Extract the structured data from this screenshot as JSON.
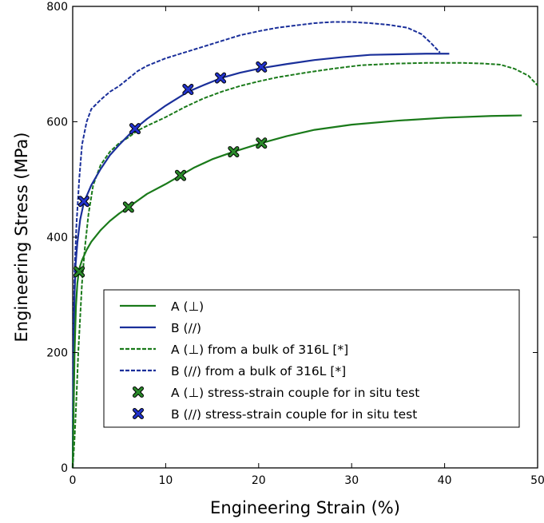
{
  "chart_data": {
    "type": "line",
    "xlabel": "Engineering Strain (%)",
    "ylabel": "Engineering Stress (MPa)",
    "xlim": [
      0,
      50
    ],
    "ylim": [
      0,
      800
    ],
    "xticks": [
      0,
      10,
      20,
      30,
      40,
      50
    ],
    "yticks": [
      0,
      200,
      400,
      600,
      800
    ],
    "grid": false,
    "legend_position": "lower-right",
    "series": [
      {
        "name": "A (⊥)",
        "style": "solid",
        "color": "#1a7a1a",
        "points": [
          [
            0,
            0
          ],
          [
            0.1,
            100
          ],
          [
            0.2,
            200
          ],
          [
            0.35,
            280
          ],
          [
            0.5,
            320
          ],
          [
            0.7,
            345
          ],
          [
            1,
            360
          ],
          [
            1.5,
            378
          ],
          [
            2,
            392
          ],
          [
            3,
            412
          ],
          [
            4,
            428
          ],
          [
            5,
            441
          ],
          [
            6,
            452
          ],
          [
            8,
            475
          ],
          [
            10,
            492
          ],
          [
            11.6,
            507
          ],
          [
            13,
            520
          ],
          [
            15,
            535
          ],
          [
            17.3,
            548
          ],
          [
            20.3,
            563
          ],
          [
            23,
            575
          ],
          [
            26,
            586
          ],
          [
            30,
            595
          ],
          [
            35,
            602
          ],
          [
            40,
            607
          ],
          [
            45,
            610
          ],
          [
            48.3,
            611
          ]
        ]
      },
      {
        "name": "B (//)",
        "style": "solid",
        "color": "#1a2f9a",
        "points": [
          [
            0,
            0
          ],
          [
            0.05,
            120
          ],
          [
            0.1,
            220
          ],
          [
            0.2,
            300
          ],
          [
            0.3,
            350
          ],
          [
            0.5,
            390
          ],
          [
            0.8,
            430
          ],
          [
            1.2,
            460
          ],
          [
            2,
            490
          ],
          [
            3,
            518
          ],
          [
            4,
            542
          ],
          [
            5,
            560
          ],
          [
            6.7,
            588
          ],
          [
            8,
            605
          ],
          [
            10,
            628
          ],
          [
            12.4,
            652
          ],
          [
            14,
            663
          ],
          [
            16,
            676
          ],
          [
            18,
            685
          ],
          [
            20.3,
            693
          ],
          [
            23,
            700
          ],
          [
            26,
            707
          ],
          [
            29,
            712
          ],
          [
            32,
            716
          ],
          [
            35,
            717
          ],
          [
            38,
            718
          ],
          [
            40.5,
            718
          ]
        ]
      },
      {
        "name": "A (⊥) from a bulk of 316L [*]",
        "style": "dashed",
        "color": "#1a7a1a",
        "points": [
          [
            0,
            0
          ],
          [
            0.2,
            50
          ],
          [
            0.4,
            120
          ],
          [
            0.6,
            200
          ],
          [
            0.8,
            260
          ],
          [
            1,
            320
          ],
          [
            1.3,
            380
          ],
          [
            1.7,
            440
          ],
          [
            2.2,
            490
          ],
          [
            3,
            525
          ],
          [
            4,
            548
          ],
          [
            5,
            563
          ],
          [
            6,
            573
          ],
          [
            7,
            585
          ],
          [
            8,
            593
          ],
          [
            10,
            608
          ],
          [
            12,
            625
          ],
          [
            14,
            640
          ],
          [
            16,
            652
          ],
          [
            18,
            662
          ],
          [
            20,
            670
          ],
          [
            22,
            677
          ],
          [
            25,
            685
          ],
          [
            28,
            692
          ],
          [
            31,
            698
          ],
          [
            35,
            701
          ],
          [
            38,
            702
          ],
          [
            42,
            702
          ],
          [
            44,
            701
          ],
          [
            46,
            699
          ],
          [
            47.5,
            692
          ],
          [
            49,
            680
          ],
          [
            50,
            663
          ]
        ]
      },
      {
        "name": "B (//) from a bulk of 316L [*]",
        "style": "dashed",
        "color": "#1a2f9a",
        "points": [
          [
            0,
            0
          ],
          [
            0.05,
            150
          ],
          [
            0.1,
            260
          ],
          [
            0.2,
            340
          ],
          [
            0.4,
            420
          ],
          [
            0.7,
            500
          ],
          [
            1,
            560
          ],
          [
            1.5,
            600
          ],
          [
            2,
            622
          ],
          [
            3,
            638
          ],
          [
            4,
            652
          ],
          [
            5,
            662
          ],
          [
            6,
            675
          ],
          [
            7,
            688
          ],
          [
            8,
            697
          ],
          [
            10,
            710
          ],
          [
            12,
            720
          ],
          [
            14,
            730
          ],
          [
            16,
            740
          ],
          [
            18,
            750
          ],
          [
            20,
            757
          ],
          [
            22,
            763
          ],
          [
            24,
            767
          ],
          [
            26,
            771
          ],
          [
            28,
            773
          ],
          [
            30,
            773
          ],
          [
            32,
            771
          ],
          [
            34,
            768
          ],
          [
            36,
            763
          ],
          [
            37.5,
            752
          ],
          [
            38.5,
            737
          ],
          [
            39.5,
            720
          ]
        ]
      },
      {
        "name": "A (⊥) stress-strain couple for in situ test",
        "style": "marker",
        "marker": "X",
        "color": "#2a8a2a",
        "points": [
          [
            0.7,
            340
          ],
          [
            6,
            452
          ],
          [
            11.6,
            507
          ],
          [
            17.3,
            548
          ],
          [
            20.3,
            563
          ]
        ]
      },
      {
        "name": "B (//) stress-strain couple for in situ test",
        "style": "marker",
        "marker": "X",
        "color": "#2233cc",
        "points": [
          [
            1.2,
            462
          ],
          [
            6.7,
            588
          ],
          [
            12.4,
            656
          ],
          [
            15.9,
            676
          ],
          [
            20.3,
            695
          ]
        ]
      }
    ]
  }
}
